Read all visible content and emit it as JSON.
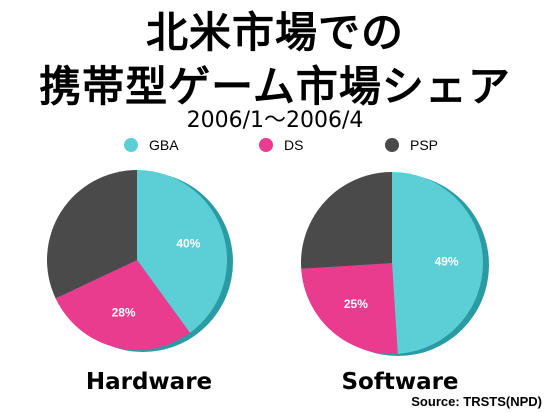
{
  "title_line1": "北米市場での",
  "title_line2": "携帯型ゲーム市場シェア",
  "subtitle": "2006/1～2006/4",
  "source": "Source: TRSTS(NPD)",
  "legend": [
    {
      "name": "GBA",
      "color": "#5ccfd6"
    },
    {
      "name": "DS",
      "color": "#ea3c8f"
    },
    {
      "name": "PSP",
      "color": "#4a4a4a"
    }
  ],
  "chart_data": [
    {
      "type": "pie",
      "label": "Hardware",
      "slices": [
        {
          "name": "GBA",
          "value": 40,
          "label": "40%"
        },
        {
          "name": "DS",
          "value": 28,
          "label": "28%"
        },
        {
          "name": "PSP",
          "value": 32,
          "label": ""
        }
      ]
    },
    {
      "type": "pie",
      "label": "Software",
      "slices": [
        {
          "name": "GBA",
          "value": 49,
          "label": "49%"
        },
        {
          "name": "DS",
          "value": 25,
          "label": "25%"
        },
        {
          "name": "PSP",
          "value": 26,
          "label": ""
        }
      ]
    }
  ]
}
